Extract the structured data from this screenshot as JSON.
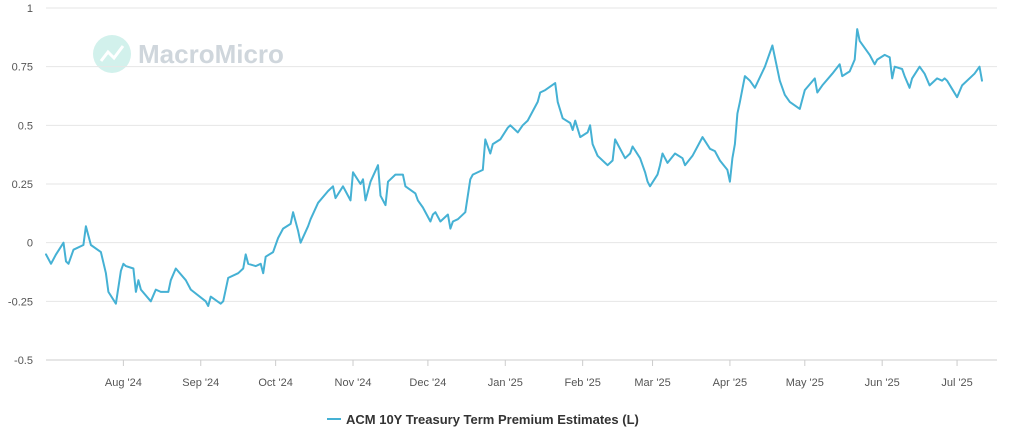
{
  "watermark": {
    "text": "MacroMicro"
  },
  "chart_data": {
    "type": "line",
    "title": "",
    "xlabel": "",
    "ylabel": "",
    "ylim": [
      -0.5,
      1
    ],
    "yticks": [
      -0.5,
      -0.25,
      0,
      0.25,
      0.5,
      0.75,
      1
    ],
    "ytick_labels": [
      "-0.5",
      "-0.25",
      "0",
      "0.25",
      "0.5",
      "0.75",
      "1"
    ],
    "xlim": [
      "2024-07-01",
      "2025-07-17"
    ],
    "xticks": [
      "2024-08-01",
      "2024-09-01",
      "2024-10-01",
      "2024-11-01",
      "2024-12-01",
      "2025-01-01",
      "2025-02-01",
      "2025-03-01",
      "2025-04-01",
      "2025-05-01",
      "2025-06-01",
      "2025-07-01"
    ],
    "xtick_labels": [
      "Aug '24",
      "Sep '24",
      "Oct '24",
      "Nov '24",
      "Dec '24",
      "Jan '25",
      "Feb '25",
      "Mar '25",
      "Apr '25",
      "May '25",
      "Jun '25",
      "Jul '25"
    ],
    "grid": true,
    "legend_position": "bottom-center",
    "series": [
      {
        "name": "ACM 10Y Treasury Term Premium Estimates (L)",
        "color": "#45b1d4",
        "points": [
          [
            "2024-07-01",
            -0.05
          ],
          [
            "2024-07-03",
            -0.09
          ],
          [
            "2024-07-05",
            -0.05
          ],
          [
            "2024-07-08",
            0.0
          ],
          [
            "2024-07-09",
            -0.08
          ],
          [
            "2024-07-10",
            -0.09
          ],
          [
            "2024-07-12",
            -0.03
          ],
          [
            "2024-07-16",
            -0.01
          ],
          [
            "2024-07-17",
            0.07
          ],
          [
            "2024-07-19",
            -0.01
          ],
          [
            "2024-07-23",
            -0.04
          ],
          [
            "2024-07-25",
            -0.13
          ],
          [
            "2024-07-26",
            -0.21
          ],
          [
            "2024-07-29",
            -0.26
          ],
          [
            "2024-07-31",
            -0.12
          ],
          [
            "2024-08-01",
            -0.09
          ],
          [
            "2024-08-02",
            -0.1
          ],
          [
            "2024-08-05",
            -0.11
          ],
          [
            "2024-08-06",
            -0.21
          ],
          [
            "2024-08-07",
            -0.16
          ],
          [
            "2024-08-08",
            -0.2
          ],
          [
            "2024-08-12",
            -0.25
          ],
          [
            "2024-08-14",
            -0.2
          ],
          [
            "2024-08-16",
            -0.21
          ],
          [
            "2024-08-19",
            -0.21
          ],
          [
            "2024-08-20",
            -0.16
          ],
          [
            "2024-08-22",
            -0.11
          ],
          [
            "2024-08-26",
            -0.16
          ],
          [
            "2024-08-28",
            -0.2
          ],
          [
            "2024-09-03",
            -0.25
          ],
          [
            "2024-09-04",
            -0.27
          ],
          [
            "2024-09-05",
            -0.23
          ],
          [
            "2024-09-09",
            -0.26
          ],
          [
            "2024-09-10",
            -0.25
          ],
          [
            "2024-09-12",
            -0.15
          ],
          [
            "2024-09-16",
            -0.13
          ],
          [
            "2024-09-18",
            -0.11
          ],
          [
            "2024-09-19",
            -0.05
          ],
          [
            "2024-09-20",
            -0.09
          ],
          [
            "2024-09-23",
            -0.1
          ],
          [
            "2024-09-25",
            -0.09
          ],
          [
            "2024-09-26",
            -0.13
          ],
          [
            "2024-09-27",
            -0.06
          ],
          [
            "2024-09-30",
            -0.04
          ],
          [
            "2024-10-02",
            0.02
          ],
          [
            "2024-10-04",
            0.06
          ],
          [
            "2024-10-07",
            0.08
          ],
          [
            "2024-10-08",
            0.13
          ],
          [
            "2024-10-10",
            0.05
          ],
          [
            "2024-10-11",
            0.0
          ],
          [
            "2024-10-14",
            0.07
          ],
          [
            "2024-10-15",
            0.1
          ],
          [
            "2024-10-18",
            0.17
          ],
          [
            "2024-10-22",
            0.22
          ],
          [
            "2024-10-24",
            0.24
          ],
          [
            "2024-10-25",
            0.19
          ],
          [
            "2024-10-28",
            0.24
          ],
          [
            "2024-10-29",
            0.22
          ],
          [
            "2024-10-31",
            0.18
          ],
          [
            "2024-11-01",
            0.3
          ],
          [
            "2024-11-04",
            0.25
          ],
          [
            "2024-11-05",
            0.27
          ],
          [
            "2024-11-06",
            0.18
          ],
          [
            "2024-11-08",
            0.26
          ],
          [
            "2024-11-11",
            0.33
          ],
          [
            "2024-11-12",
            0.2
          ],
          [
            "2024-11-14",
            0.16
          ],
          [
            "2024-11-15",
            0.26
          ],
          [
            "2024-11-18",
            0.29
          ],
          [
            "2024-11-21",
            0.29
          ],
          [
            "2024-11-22",
            0.24
          ],
          [
            "2024-11-26",
            0.21
          ],
          [
            "2024-11-27",
            0.18
          ],
          [
            "2024-11-29",
            0.15
          ],
          [
            "2024-12-02",
            0.09
          ],
          [
            "2024-12-03",
            0.12
          ],
          [
            "2024-12-04",
            0.13
          ],
          [
            "2024-12-06",
            0.09
          ],
          [
            "2024-12-09",
            0.12
          ],
          [
            "2024-12-10",
            0.06
          ],
          [
            "2024-12-11",
            0.09
          ],
          [
            "2024-12-13",
            0.1
          ],
          [
            "2024-12-16",
            0.13
          ],
          [
            "2024-12-18",
            0.27
          ],
          [
            "2024-12-19",
            0.29
          ],
          [
            "2024-12-23",
            0.31
          ],
          [
            "2024-12-24",
            0.44
          ],
          [
            "2024-12-26",
            0.38
          ],
          [
            "2024-12-27",
            0.42
          ],
          [
            "2024-12-30",
            0.44
          ],
          [
            "2025-01-02",
            0.49
          ],
          [
            "2025-01-03",
            0.5
          ],
          [
            "2025-01-06",
            0.47
          ],
          [
            "2025-01-08",
            0.5
          ],
          [
            "2025-01-10",
            0.52
          ],
          [
            "2025-01-14",
            0.6
          ],
          [
            "2025-01-15",
            0.64
          ],
          [
            "2025-01-17",
            0.65
          ],
          [
            "2025-01-21",
            0.68
          ],
          [
            "2025-01-22",
            0.6
          ],
          [
            "2025-01-24",
            0.53
          ],
          [
            "2025-01-27",
            0.51
          ],
          [
            "2025-01-28",
            0.48
          ],
          [
            "2025-01-29",
            0.52
          ],
          [
            "2025-01-31",
            0.45
          ],
          [
            "2025-02-03",
            0.47
          ],
          [
            "2025-02-04",
            0.5
          ],
          [
            "2025-02-05",
            0.42
          ],
          [
            "2025-02-07",
            0.37
          ],
          [
            "2025-02-10",
            0.34
          ],
          [
            "2025-02-11",
            0.33
          ],
          [
            "2025-02-13",
            0.35
          ],
          [
            "2025-02-14",
            0.44
          ],
          [
            "2025-02-18",
            0.36
          ],
          [
            "2025-02-20",
            0.38
          ],
          [
            "2025-02-21",
            0.41
          ],
          [
            "2025-02-24",
            0.36
          ],
          [
            "2025-02-26",
            0.3
          ],
          [
            "2025-02-27",
            0.26
          ],
          [
            "2025-02-28",
            0.24
          ],
          [
            "2025-03-03",
            0.29
          ],
          [
            "2025-03-04",
            0.33
          ],
          [
            "2025-03-05",
            0.38
          ],
          [
            "2025-03-06",
            0.36
          ],
          [
            "2025-03-07",
            0.34
          ],
          [
            "2025-03-10",
            0.38
          ],
          [
            "2025-03-13",
            0.36
          ],
          [
            "2025-03-14",
            0.33
          ],
          [
            "2025-03-17",
            0.37
          ],
          [
            "2025-03-19",
            0.41
          ],
          [
            "2025-03-21",
            0.45
          ],
          [
            "2025-03-24",
            0.4
          ],
          [
            "2025-03-26",
            0.39
          ],
          [
            "2025-03-28",
            0.35
          ],
          [
            "2025-03-31",
            0.31
          ],
          [
            "2025-04-01",
            0.26
          ],
          [
            "2025-04-02",
            0.36
          ],
          [
            "2025-04-03",
            0.42
          ],
          [
            "2025-04-04",
            0.55
          ],
          [
            "2025-04-05",
            0.6
          ],
          [
            "2025-04-07",
            0.71
          ],
          [
            "2025-04-09",
            0.69
          ],
          [
            "2025-04-11",
            0.66
          ],
          [
            "2025-04-15",
            0.75
          ],
          [
            "2025-04-18",
            0.84
          ],
          [
            "2025-04-21",
            0.69
          ],
          [
            "2025-04-23",
            0.63
          ],
          [
            "2025-04-25",
            0.6
          ],
          [
            "2025-04-29",
            0.57
          ],
          [
            "2025-05-01",
            0.65
          ],
          [
            "2025-05-05",
            0.7
          ],
          [
            "2025-05-06",
            0.64
          ],
          [
            "2025-05-08",
            0.67
          ],
          [
            "2025-05-12",
            0.72
          ],
          [
            "2025-05-15",
            0.76
          ],
          [
            "2025-05-16",
            0.71
          ],
          [
            "2025-05-19",
            0.73
          ],
          [
            "2025-05-21",
            0.78
          ],
          [
            "2025-05-22",
            0.91
          ],
          [
            "2025-05-23",
            0.86
          ],
          [
            "2025-05-27",
            0.8
          ],
          [
            "2025-05-29",
            0.76
          ],
          [
            "2025-05-30",
            0.78
          ],
          [
            "2025-06-02",
            0.8
          ],
          [
            "2025-06-04",
            0.79
          ],
          [
            "2025-06-05",
            0.7
          ],
          [
            "2025-06-06",
            0.75
          ],
          [
            "2025-06-09",
            0.74
          ],
          [
            "2025-06-10",
            0.71
          ],
          [
            "2025-06-12",
            0.66
          ],
          [
            "2025-06-13",
            0.7
          ],
          [
            "2025-06-16",
            0.75
          ],
          [
            "2025-06-18",
            0.72
          ],
          [
            "2025-06-20",
            0.67
          ],
          [
            "2025-06-23",
            0.7
          ],
          [
            "2025-06-25",
            0.69
          ],
          [
            "2025-06-26",
            0.7
          ],
          [
            "2025-06-27",
            0.69
          ],
          [
            "2025-07-01",
            0.62
          ],
          [
            "2025-07-03",
            0.67
          ],
          [
            "2025-07-08",
            0.72
          ],
          [
            "2025-07-10",
            0.75
          ],
          [
            "2025-07-11",
            0.69
          ]
        ]
      }
    ]
  }
}
